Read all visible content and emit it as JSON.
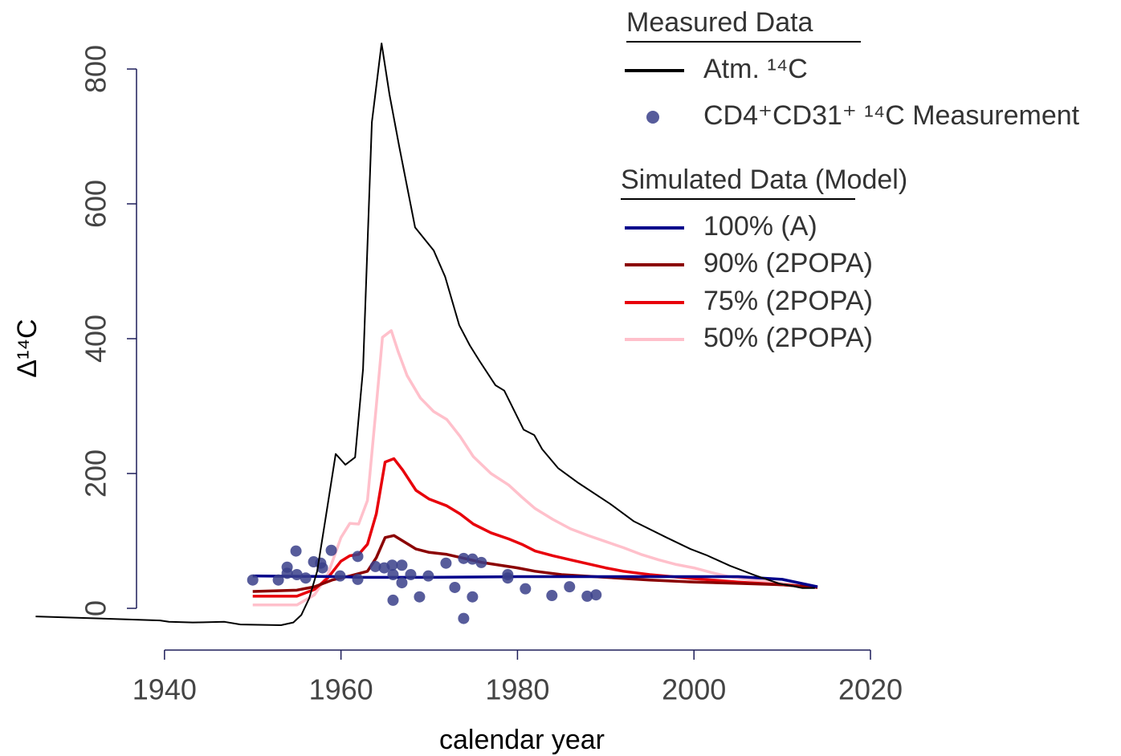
{
  "chart_data": {
    "type": "line",
    "xlabel": "calendar year",
    "ylabel": "Δ¹⁴C",
    "xlim": [
      1925,
      2020
    ],
    "xticks": [
      1940,
      1960,
      1980,
      2000,
      2020
    ],
    "ylim": [
      -60,
      840
    ],
    "yticks": [
      0,
      200,
      400,
      600,
      800
    ],
    "grid": false,
    "legend_title_measured": "Measured Data",
    "legend_title_simulated": "Simulated Data (Model)",
    "series": [
      {
        "name": "Atm. ¹⁴C",
        "type": "line",
        "color": "#000000",
        "width": 2,
        "x": [
          1925.4,
          1939.5,
          1940.5,
          1943.2,
          1946.8,
          1948.6,
          1953.2,
          1954.6,
          1955.5,
          1956.4,
          1957.3,
          1958.2,
          1959.4,
          1960.5,
          1961.6,
          1962.5,
          1963.5,
          1964.6,
          1965.5,
          1966.6,
          1968.4,
          1970.5,
          1971.8,
          1973.4,
          1974.6,
          1975.7,
          1977.5,
          1978.5,
          1980.7,
          1981.9,
          1982.8,
          1984.6,
          1986.9,
          1990.5,
          1993.2,
          1996.9,
          1999.6,
          2001.4,
          2004.1,
          2006.9,
          2009.6,
          2012.3,
          2013.7
        ],
        "values": [
          -12,
          -18,
          -20,
          -21,
          -20,
          -24,
          -25,
          -21,
          -10,
          15,
          55,
          129,
          229,
          213,
          224,
          355,
          721,
          838,
          762,
          685,
          565,
          531,
          492,
          420,
          390,
          367,
          331,
          323,
          265,
          257,
          236,
          208,
          186,
          155,
          129,
          105,
          88,
          79,
          63,
          49,
          37,
          30,
          30
        ]
      },
      {
        "name": "CD4⁺CD31⁺ ¹⁴C Measurement",
        "type": "scatter",
        "color": "#3a3f8a",
        "x": [
          1950.0,
          1952.9,
          1953.9,
          1953.9,
          1954.9,
          1955.0,
          1956.0,
          1956.9,
          1957.7,
          1957.9,
          1958.9,
          1959.9,
          1961.9,
          1961.9,
          1963.9,
          1964.9,
          1965.8,
          1965.9,
          1965.9,
          1966.9,
          1966.9,
          1967.9,
          1968.9,
          1969.9,
          1971.9,
          1972.9,
          1973.9,
          1973.9,
          1974.9,
          1974.9,
          1975.9,
          1978.9,
          1978.9,
          1980.9,
          1983.9,
          1985.9,
          1987.9,
          1988.9
        ],
        "values": [
          42,
          42,
          61,
          52,
          85,
          50,
          45,
          69,
          67,
          60,
          86,
          48,
          77,
          43,
          62,
          60,
          64,
          50,
          12,
          64,
          38,
          50,
          17,
          48,
          67,
          31,
          74,
          -15,
          73,
          17,
          68,
          50,
          45,
          29,
          19,
          32,
          18,
          20
        ]
      },
      {
        "name": "100% (A)",
        "type": "line",
        "color": "#00008b",
        "width": 3.5,
        "x": [
          1950,
          1960,
          1962,
          1970,
          1980,
          1990,
          2000,
          2005,
          2010,
          2014
        ],
        "values": [
          48,
          47,
          46,
          46,
          47,
          47,
          47,
          47,
          43,
          32
        ]
      },
      {
        "name": "90% (2POPA)",
        "type": "line",
        "color": "#8b0000",
        "width": 3.5,
        "x": [
          1950,
          1955,
          1957,
          1959,
          1961,
          1963,
          1964,
          1965,
          1966,
          1967,
          1968.5,
          1970,
          1972,
          1974,
          1976,
          1978,
          1980,
          1982,
          1985,
          1990,
          1995,
          2000,
          2005,
          2010,
          2014
        ],
        "values": [
          25,
          27,
          32,
          42,
          48,
          55,
          75,
          105,
          108,
          100,
          88,
          83,
          80,
          74,
          68,
          64,
          60,
          55,
          50,
          46,
          42,
          39,
          37,
          35,
          31
        ]
      },
      {
        "name": "75% (2POPA)",
        "type": "line",
        "color": "#e8000b",
        "width": 3.5,
        "x": [
          1950,
          1955,
          1957,
          1958.5,
          1960,
          1961,
          1962,
          1963,
          1964,
          1965,
          1966,
          1967,
          1968.5,
          1970,
          1972,
          1973.5,
          1975,
          1977,
          1979,
          1980.5,
          1982,
          1984,
          1986,
          1988,
          1990,
          1992,
          1995,
          2000,
          2005,
          2010,
          2014
        ],
        "values": [
          18,
          18,
          28,
          45,
          70,
          78,
          80,
          95,
          140,
          217,
          222,
          205,
          175,
          162,
          152,
          140,
          125,
          112,
          103,
          95,
          85,
          78,
          72,
          66,
          60,
          55,
          50,
          44,
          39,
          35,
          31
        ]
      },
      {
        "name": "50% (2POPA)",
        "type": "line",
        "color": "#ffc0cb",
        "width": 3.5,
        "x": [
          1950,
          1955,
          1957,
          1958.5,
          1960,
          1961,
          1962,
          1963,
          1964,
          1964.7,
          1965.7,
          1966.5,
          1967.5,
          1969,
          1970.5,
          1972,
          1973.5,
          1975,
          1977,
          1979,
          1980.5,
          1982,
          1984,
          1986,
          1988,
          1990,
          1992,
          1994,
          1996,
          1998,
          2000,
          2002,
          2004,
          2006,
          2008,
          2010,
          2012,
          2014
        ],
        "values": [
          5,
          5,
          20,
          50,
          105,
          126,
          125,
          160,
          300,
          402,
          412,
          380,
          345,
          312,
          292,
          280,
          255,
          225,
          200,
          183,
          165,
          148,
          132,
          118,
          108,
          99,
          90,
          80,
          72,
          65,
          60,
          53,
          47,
          43,
          40,
          37,
          34,
          31
        ]
      }
    ]
  }
}
